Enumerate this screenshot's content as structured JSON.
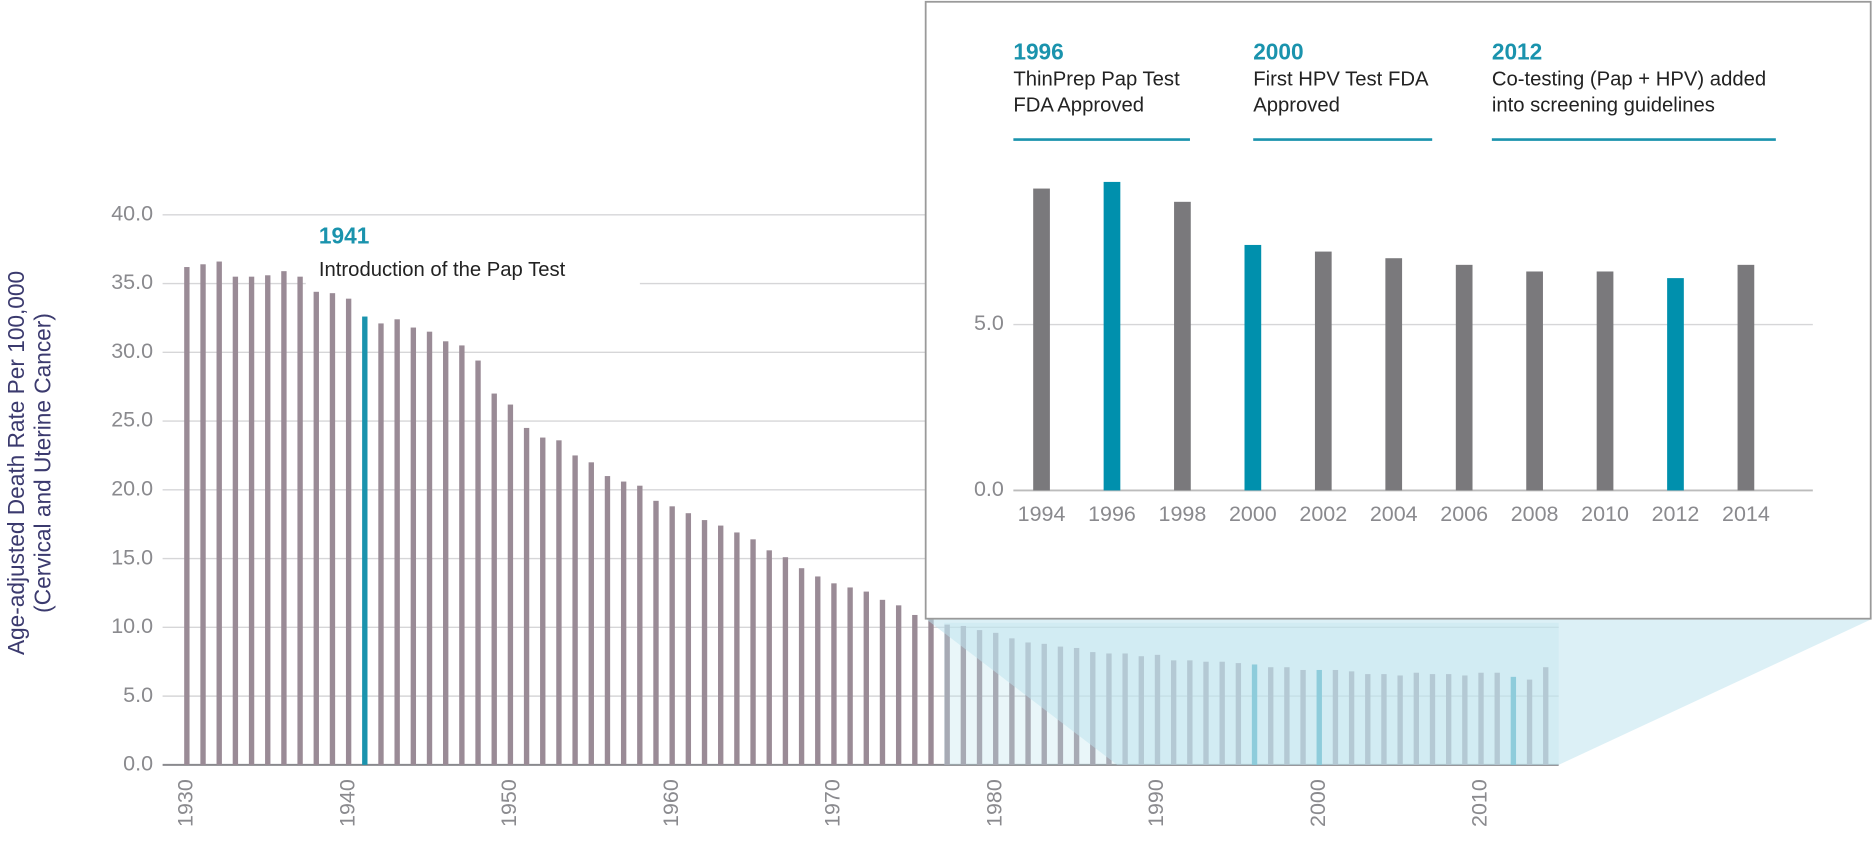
{
  "chart_data": [
    {
      "type": "bar",
      "y_label": [
        "Age-adjusted Death Rate Per 100,000",
        "(Cervical and Uterine Cancer)"
      ],
      "x": [
        1930,
        1931,
        1932,
        1933,
        1934,
        1935,
        1936,
        1937,
        1938,
        1939,
        1940,
        1941,
        1942,
        1943,
        1944,
        1945,
        1946,
        1947,
        1948,
        1949,
        1950,
        1951,
        1952,
        1953,
        1954,
        1955,
        1956,
        1957,
        1958,
        1959,
        1960,
        1961,
        1962,
        1963,
        1964,
        1965,
        1966,
        1967,
        1968,
        1969,
        1970,
        1971,
        1972,
        1973,
        1974,
        1975,
        1976,
        1977,
        1978,
        1979,
        1980,
        1981,
        1982,
        1983,
        1984,
        1985,
        1986,
        1987,
        1988,
        1989,
        1990,
        1991,
        1992,
        1993,
        1994,
        1995,
        1996,
        1997,
        1998,
        1999,
        2000,
        2001,
        2002,
        2003,
        2004,
        2005,
        2006,
        2007,
        2008,
        2009,
        2010,
        2011,
        2012,
        2013,
        2014
      ],
      "values": [
        36.2,
        36.4,
        36.6,
        35.5,
        35.5,
        35.6,
        35.9,
        35.5,
        34.4,
        34.3,
        33.9,
        32.6,
        32.1,
        32.4,
        31.8,
        31.5,
        30.8,
        30.5,
        29.4,
        27.0,
        26.2,
        24.5,
        23.8,
        23.6,
        22.5,
        22.0,
        21.0,
        20.6,
        20.3,
        19.2,
        18.8,
        18.3,
        17.8,
        17.4,
        16.9,
        16.4,
        15.6,
        15.1,
        14.3,
        13.7,
        13.2,
        12.9,
        12.6,
        12.0,
        11.6,
        10.9,
        10.6,
        10.2,
        10.1,
        9.8,
        9.6,
        9.2,
        8.9,
        8.8,
        8.6,
        8.5,
        8.2,
        8.1,
        8.1,
        7.9,
        8.0,
        7.6,
        7.6,
        7.5,
        7.5,
        7.4,
        7.3,
        7.1,
        7.1,
        6.9,
        6.9,
        6.9,
        6.8,
        6.6,
        6.6,
        6.5,
        6.7,
        6.6,
        6.6,
        6.5,
        6.7,
        6.7,
        6.4,
        6.2,
        7.1
      ],
      "color": "#9a8b96",
      "highlight_color": "#1a93ad",
      "highlight": [
        1941,
        1996,
        2000,
        2012
      ],
      "xlim": [
        1928.5,
        2014.8
      ],
      "xticks": [
        1930,
        1940,
        1950,
        1960,
        1970,
        1980,
        1990,
        2000,
        2010
      ],
      "ylim": [
        0,
        40
      ],
      "yticks": [
        {
          "value": 0,
          "label": "0.0"
        },
        {
          "value": 5,
          "label": "5.0"
        },
        {
          "value": 10,
          "label": "10.0"
        },
        {
          "value": 15,
          "label": "15.0"
        },
        {
          "value": 20,
          "label": "20.0"
        },
        {
          "value": 25,
          "label": "25.0"
        },
        {
          "value": 30,
          "label": "30.0"
        },
        {
          "value": 35,
          "label": "35.0"
        },
        {
          "value": 40,
          "label": "40.0"
        }
      ],
      "grid": true,
      "annotations": [
        {
          "label": "1941",
          "text": [
            "Introduction of the Pap Test"
          ]
        }
      ]
    },
    {
      "type": "bar",
      "x": [
        1994,
        1996,
        1998,
        2000,
        2002,
        2004,
        2006,
        2008,
        2010,
        2012,
        2014
      ],
      "values": [
        9.1,
        9.3,
        8.7,
        7.4,
        7.2,
        7.0,
        6.8,
        6.6,
        6.6,
        6.4,
        6.8
      ],
      "color": "#7a797c",
      "highlight_color": "#0090ad",
      "highlight": [
        1996,
        2000,
        2012
      ],
      "xlim": [
        1993.2,
        2015.9
      ],
      "xticks": [
        1994,
        1996,
        1998,
        2000,
        2002,
        2004,
        2006,
        2008,
        2010,
        2012,
        2014
      ],
      "ylim": [
        0,
        10
      ],
      "yticks": [
        {
          "value": 0,
          "label": "0.0"
        },
        {
          "value": 5,
          "label": "5.0"
        }
      ],
      "grid": true,
      "annotations": [
        {
          "label": "1996",
          "text": [
            "ThinPrep Pap Test",
            "FDA Approved"
          ]
        },
        {
          "label": "2000",
          "text": [
            "First HPV Test FDA",
            "Approved"
          ]
        },
        {
          "label": "2012",
          "text": [
            "Co-testing (Pap + HPV) added",
            "into screening guidelines"
          ]
        }
      ]
    }
  ]
}
